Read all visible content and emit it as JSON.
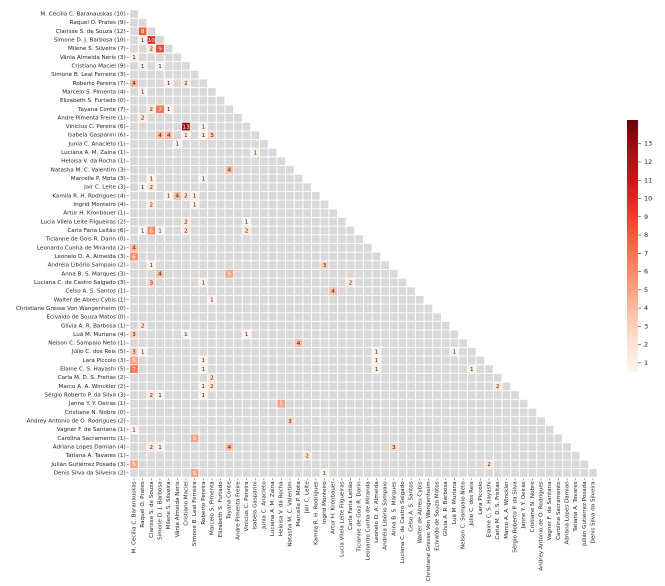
{
  "chart_data": {
    "type": "heatmap",
    "row_labels": [
      "M. Cecília C. Baranauskas (10)",
      "Raquel O. Prates (9)",
      "Clarisse S. de Souza (12)",
      "Simone D. J. Barbosa (10)",
      "Milene S. Silveira (7)",
      "Vânia Almeida Neris (3)",
      "Cristiano Maciel (9)",
      "Simone B. Leal Ferreira (3)",
      "Roberto Pereira (7)",
      "Marcelo S. Pimenta (4)",
      "Elizabeth S. Furtado (0)",
      "Tayana Conte (7)",
      "Andre Pimenta Freire (1)",
      "Vinicius C. Pereira (6)",
      "Isabela Gasparini (6)",
      "Junia C. Anacleto (1)",
      "Luciana A. M. Zaina (1)",
      "Heloisa V. da Rocha (1)",
      "Natasha M. C. Valentim (3)",
      "Marcelle P. Mota (3)",
      "Jair C. Leite (3)",
      "Kamila R. H. Rodrigues (4)",
      "Ingrid Monteiro (4)",
      "Artur H. Kronbauer (1)",
      "Lucia Vilela Leite Filgueiras (2)",
      "Carla Faria Leitão (6)",
      "Ticianne de Gois R. Darin (0)",
      "Leonardo Cunha de Miranda (2)",
      "Leonelo D. A. Almeida (3)",
      "Andréia Libório Sampaio (2)",
      "Anna B. S. Marques (3)",
      "Luciana C. de Castro Salgado (3)",
      "Celso A. S. Santos (1)",
      "Walter de Abreu Cybis (1)",
      "Christiane Gresse Von Wangenheim (0)",
      "Ecivaldo de Souza Matos (0)",
      "Glívia A. R. Barbosa (1)",
      "Luã M. Muriana (4)",
      "Nelson C. Sampaio Neto (1)",
      "Júlio C. dos Reis (5)",
      "Lara Piccolo (3)",
      "Elaine C. S. Hayashi (5)",
      "Carla M. D. S. Freitas (2)",
      "Marco A. A. Winckler (2)",
      "Sérgio Roberto P. da Silva (3)",
      "Janne Y. Y. Oeiras (1)",
      "Cristiane N. Nobre (0)",
      "Andrey Antonio de O. Rodrigues (2)",
      "Vagner F. de Santana (1)",
      "Carolina Sacramento (1)",
      "Adriana Lopes Damian (4)",
      "Tatiana A. Tavares (1)",
      "Julián Gutiérrez Posada (3)",
      "Denis Silva da Silveira (2)"
    ],
    "col_labels": [
      "M. Cecília C. Baranauskas",
      "Raquel O. Prates",
      "Clarisse S. de Souza",
      "Simone D. J. Barbosa",
      "Milene S. Silveira",
      "Vânia Almeida Neris",
      "Cristiano Maciel",
      "Simone B. Leal Ferreira",
      "Roberto Pereira",
      "Marcelo S. Pimenta",
      "Elizabeth S. Furtado",
      "Tayana Conte",
      "Andre Pimenta Freire",
      "Vinicius C. Pereira",
      "Isabela Gasparini",
      "Junia C. Anacleto",
      "Luciana A. M. Zaina",
      "Heloisa V. da Rocha",
      "Natasha M. C. Valentim",
      "Marcelle P. Mota",
      "Jair C. Leite",
      "Kamila R. H. Rodrigues",
      "Ingrid Monteiro",
      "Artur H. Kronbauer",
      "Lucia Vilela Leite Filgueiras",
      "Carla Faria Leitão",
      "Ticianne de Gois R. Darin",
      "Leonardo Cunha de Miranda",
      "Leonelo D. A. Almeida",
      "Andréia Libório Sampaio",
      "Anna B. S. Marques",
      "Luciana C. de Castro Salgado",
      "Celso A. S. Santos",
      "Walter de Abreu Cybis",
      "Christiane Gresse Von Wangenheim",
      "Ecivaldo de Souza Matos",
      "Glívia A. R. Barbosa",
      "Luã M. Muriana",
      "Nelson C. Sampaio Neto",
      "Júlio C. dos Reis",
      "Lara Piccolo",
      "Elaine C. S. Hayashi",
      "Carla M. D. S. Freitas",
      "Marco A. A. Winckler",
      "Sérgio Roberto P. da Silva",
      "Janne Y. Y. Oeiras",
      "Cristiane N. Nobre",
      "Andrey Antonio de O. Rodrigues",
      "Vagner F. de Santana",
      "Carolina Sacramento",
      "Adriana Lopes Damian",
      "Tatiana A. Tavares",
      "Julián Gutiérrez Posada",
      "Denis Silva da Silveira"
    ],
    "cells": [
      {
        "row": 2,
        "col": 1,
        "value": 8
      },
      {
        "row": 3,
        "col": 1,
        "value": 1
      },
      {
        "row": 3,
        "col": 2,
        "value": 10
      },
      {
        "row": 4,
        "col": 2,
        "value": 2
      },
      {
        "row": 4,
        "col": 3,
        "value": 9
      },
      {
        "row": 5,
        "col": 0,
        "value": 1
      },
      {
        "row": 6,
        "col": 1,
        "value": 1
      },
      {
        "row": 6,
        "col": 3,
        "value": 1
      },
      {
        "row": 8,
        "col": 0,
        "value": 4
      },
      {
        "row": 8,
        "col": 4,
        "value": 1
      },
      {
        "row": 8,
        "col": 6,
        "value": 2
      },
      {
        "row": 9,
        "col": 1,
        "value": 1
      },
      {
        "row": 11,
        "col": 2,
        "value": 2
      },
      {
        "row": 11,
        "col": 3,
        "value": 7
      },
      {
        "row": 11,
        "col": 4,
        "value": 1
      },
      {
        "row": 12,
        "col": 1,
        "value": 2
      },
      {
        "row": 13,
        "col": 6,
        "value": 13
      },
      {
        "row": 13,
        "col": 8,
        "value": 1
      },
      {
        "row": 14,
        "col": 3,
        "value": 4
      },
      {
        "row": 14,
        "col": 4,
        "value": 4
      },
      {
        "row": 14,
        "col": 6,
        "value": 1
      },
      {
        "row": 14,
        "col": 8,
        "value": 1
      },
      {
        "row": 14,
        "col": 9,
        "value": 3
      },
      {
        "row": 15,
        "col": 5,
        "value": 1
      },
      {
        "row": 16,
        "col": 14,
        "value": 1
      },
      {
        "row": 18,
        "col": 11,
        "value": 4
      },
      {
        "row": 19,
        "col": 2,
        "value": 1
      },
      {
        "row": 19,
        "col": 8,
        "value": 1
      },
      {
        "row": 20,
        "col": 1,
        "value": 1
      },
      {
        "row": 20,
        "col": 2,
        "value": 2
      },
      {
        "row": 21,
        "col": 4,
        "value": 1
      },
      {
        "row": 21,
        "col": 5,
        "value": 4
      },
      {
        "row": 21,
        "col": 6,
        "value": 2
      },
      {
        "row": 21,
        "col": 7,
        "value": 1
      },
      {
        "row": 22,
        "col": 2,
        "value": 2
      },
      {
        "row": 22,
        "col": 7,
        "value": 1
      },
      {
        "row": 24,
        "col": 6,
        "value": 2
      },
      {
        "row": 24,
        "col": 13,
        "value": 1
      },
      {
        "row": 25,
        "col": 1,
        "value": 1
      },
      {
        "row": 25,
        "col": 2,
        "value": 6
      },
      {
        "row": 25,
        "col": 3,
        "value": 1
      },
      {
        "row": 25,
        "col": 6,
        "value": 2
      },
      {
        "row": 25,
        "col": 13,
        "value": 2
      },
      {
        "row": 27,
        "col": 0,
        "value": 4
      },
      {
        "row": 28,
        "col": 0,
        "value": 6
      },
      {
        "row": 29,
        "col": 2,
        "value": 1
      },
      {
        "row": 29,
        "col": 22,
        "value": 3
      },
      {
        "row": 30,
        "col": 3,
        "value": 4
      },
      {
        "row": 30,
        "col": 11,
        "value": 5
      },
      {
        "row": 31,
        "col": 2,
        "value": 3
      },
      {
        "row": 31,
        "col": 8,
        "value": 1
      },
      {
        "row": 31,
        "col": 25,
        "value": 2
      },
      {
        "row": 32,
        "col": 23,
        "value": 4
      },
      {
        "row": 33,
        "col": 9,
        "value": 1
      },
      {
        "row": 36,
        "col": 1,
        "value": 2
      },
      {
        "row": 37,
        "col": 0,
        "value": 3
      },
      {
        "row": 37,
        "col": 6,
        "value": 1
      },
      {
        "row": 37,
        "col": 13,
        "value": 1
      },
      {
        "row": 38,
        "col": 19,
        "value": 4
      },
      {
        "row": 39,
        "col": 0,
        "value": 3
      },
      {
        "row": 39,
        "col": 1,
        "value": 1
      },
      {
        "row": 39,
        "col": 28,
        "value": 1
      },
      {
        "row": 39,
        "col": 37,
        "value": 1
      },
      {
        "row": 40,
        "col": 0,
        "value": 5
      },
      {
        "row": 40,
        "col": 8,
        "value": 1
      },
      {
        "row": 40,
        "col": 28,
        "value": 1
      },
      {
        "row": 41,
        "col": 0,
        "value": 7
      },
      {
        "row": 41,
        "col": 8,
        "value": 1
      },
      {
        "row": 41,
        "col": 28,
        "value": 1
      },
      {
        "row": 41,
        "col": 39,
        "value": 1
      },
      {
        "row": 42,
        "col": 9,
        "value": 2
      },
      {
        "row": 43,
        "col": 8,
        "value": 1
      },
      {
        "row": 43,
        "col": 9,
        "value": 2
      },
      {
        "row": 43,
        "col": 42,
        "value": 2
      },
      {
        "row": 44,
        "col": 2,
        "value": 2
      },
      {
        "row": 44,
        "col": 3,
        "value": 1
      },
      {
        "row": 44,
        "col": 8,
        "value": 1
      },
      {
        "row": 45,
        "col": 17,
        "value": 5
      },
      {
        "row": 47,
        "col": 18,
        "value": 3
      },
      {
        "row": 48,
        "col": 0,
        "value": 1
      },
      {
        "row": 49,
        "col": 7,
        "value": 5
      },
      {
        "row": 50,
        "col": 2,
        "value": 2
      },
      {
        "row": 50,
        "col": 3,
        "value": 1
      },
      {
        "row": 50,
        "col": 11,
        "value": 4
      },
      {
        "row": 50,
        "col": 30,
        "value": 3
      },
      {
        "row": 51,
        "col": 20,
        "value": 2
      },
      {
        "row": 52,
        "col": 0,
        "value": 5
      },
      {
        "row": 52,
        "col": 41,
        "value": 2
      },
      {
        "row": 53,
        "col": 7,
        "value": 5
      },
      {
        "row": 53,
        "col": 22,
        "value": 1
      }
    ],
    "colormap": [
      "#fff5f0",
      "#fee0d2",
      "#fcbba1",
      "#fc9272",
      "#fb6a4a",
      "#ef3b2c",
      "#cb181d",
      "#a50f15",
      "#67000d"
    ],
    "empty_color": "#d9d9d9",
    "clim": [
      0.5,
      14.3
    ],
    "cticks": [
      1,
      2,
      3,
      4,
      5,
      6,
      7,
      8,
      9,
      10,
      11,
      12,
      13
    ]
  }
}
